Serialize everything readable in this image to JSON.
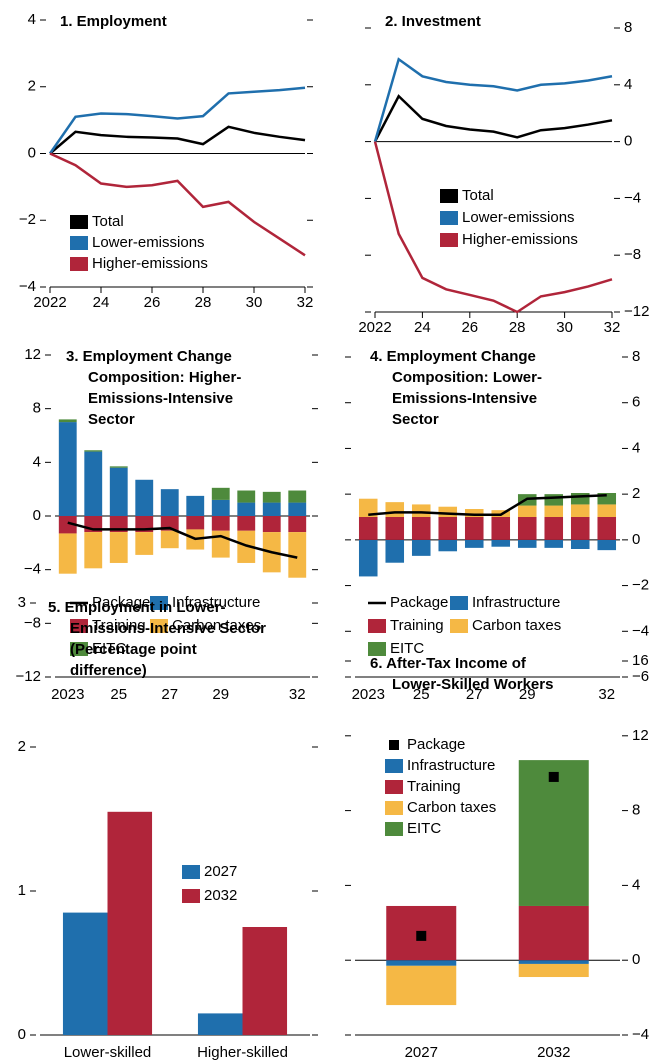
{
  "chart_data": [
    {
      "type": "line",
      "title": [
        "1. Employment"
      ],
      "x": [
        2022,
        2023,
        2024,
        2025,
        2026,
        2027,
        2028,
        2029,
        2030,
        2031,
        2032
      ],
      "xlim": [
        2022,
        2032
      ],
      "xticks": [
        2022,
        {
          "value": 2024,
          "label": "24"
        },
        {
          "value": 2026,
          "label": "26"
        },
        {
          "value": 2028,
          "label": "28"
        },
        {
          "value": 2030,
          "label": "30"
        },
        {
          "value": 2032,
          "label": "32"
        }
      ],
      "ylim": [
        -4,
        4
      ],
      "yticks": [
        {
          "value": -4,
          "label": "−4"
        },
        {
          "value": -2,
          "label": "−2"
        },
        0,
        2,
        4
      ],
      "series": [
        {
          "name": "Total",
          "color": "#000000",
          "values": [
            0,
            0.65,
            0.55,
            0.5,
            0.48,
            0.45,
            0.28,
            0.8,
            0.62,
            0.5,
            0.4
          ]
        },
        {
          "name": "Lower-emissions",
          "color": "#1f6fad",
          "values": [
            0,
            1.1,
            1.2,
            1.18,
            1.12,
            1.05,
            1.12,
            1.8,
            1.85,
            1.9,
            1.97
          ]
        },
        {
          "name": "Higher-emissions",
          "color": "#b0253a",
          "values": [
            0,
            -0.35,
            -0.9,
            -1.0,
            -0.95,
            -0.82,
            -1.6,
            -1.45,
            -2.05,
            -2.55,
            -3.05
          ]
        }
      ]
    },
    {
      "type": "line",
      "title": [
        "2. Investment"
      ],
      "x": [
        2022,
        2023,
        2024,
        2025,
        2026,
        2027,
        2028,
        2029,
        2030,
        2031,
        2032
      ],
      "xlim": [
        2022,
        2032
      ],
      "xticks": [
        2022,
        {
          "value": 2024,
          "label": "24"
        },
        {
          "value": 2026,
          "label": "26"
        },
        {
          "value": 2028,
          "label": "28"
        },
        {
          "value": 2030,
          "label": "30"
        },
        {
          "value": 2032,
          "label": "32"
        }
      ],
      "ylim": [
        -12,
        8
      ],
      "yticks": [
        {
          "value": -12,
          "label": "−12"
        },
        {
          "value": -8,
          "label": "−8"
        },
        {
          "value": -4,
          "label": "−4"
        },
        0,
        4,
        8
      ],
      "series": [
        {
          "name": "Total",
          "color": "#000000",
          "values": [
            0,
            3.2,
            1.6,
            1.1,
            0.85,
            0.7,
            0.3,
            0.8,
            0.95,
            1.2,
            1.5
          ]
        },
        {
          "name": "Lower-emissions",
          "color": "#1f6fad",
          "values": [
            0,
            5.8,
            4.6,
            4.2,
            4.0,
            3.9,
            3.6,
            4.0,
            4.1,
            4.3,
            4.6
          ]
        },
        {
          "name": "Higher-emissions",
          "color": "#b0253a",
          "values": [
            0,
            -6.5,
            -9.6,
            -10.4,
            -10.8,
            -11.2,
            -12.0,
            -10.9,
            -10.6,
            -10.2,
            -9.7
          ]
        }
      ]
    },
    {
      "type": "bar",
      "stacked": true,
      "title": [
        "3. Employment Change",
        "Composition: Higher-",
        "Emissions-Intensive",
        "Sector"
      ],
      "categories": [
        "2023",
        null,
        "25",
        null,
        "27",
        null,
        "29",
        null,
        null,
        "32"
      ],
      "ylim": [
        -12,
        12
      ],
      "yticks": [
        {
          "value": -12,
          "label": "−12"
        },
        {
          "value": -8,
          "label": "−8"
        },
        {
          "value": -4,
          "label": "−4"
        },
        0,
        4,
        8,
        12
      ],
      "series": [
        {
          "name": "Package",
          "type": "line",
          "color": "#000000",
          "values": [
            -0.5,
            -1.0,
            -1.0,
            -1.0,
            -0.9,
            -1.7,
            -1.5,
            -2.2,
            -2.7,
            -3.1
          ]
        },
        {
          "name": "Infrastructure",
          "color": "#1f6fad",
          "values": [
            7.0,
            4.8,
            3.6,
            2.7,
            2.0,
            1.5,
            1.2,
            1.0,
            1.0,
            1.0
          ]
        },
        {
          "name": "Training",
          "color": "#b0253a",
          "values": [
            -1.3,
            -1.2,
            -1.2,
            -1.2,
            -1.1,
            -1.0,
            -1.1,
            -1.1,
            -1.2,
            -1.2
          ]
        },
        {
          "name": "Carbon taxes",
          "color": "#f5b845",
          "values": [
            -3.0,
            -2.7,
            -2.3,
            -1.7,
            -1.3,
            -1.5,
            -2.0,
            -2.4,
            -3.0,
            -3.4
          ]
        },
        {
          "name": "EITC",
          "color": "#4e8a3c",
          "values": [
            0.2,
            0.1,
            0.1,
            0,
            0,
            0,
            0.9,
            0.9,
            0.8,
            0.9
          ]
        }
      ]
    },
    {
      "type": "bar",
      "stacked": true,
      "title": [
        "4. Employment Change",
        "Composition: Lower-",
        "Emissions-Intensive",
        "Sector"
      ],
      "categories": [
        "2023",
        null,
        "25",
        null,
        "27",
        null,
        "29",
        null,
        null,
        "32"
      ],
      "ylim": [
        -6,
        8
      ],
      "yticks": [
        {
          "value": -6,
          "label": "−6"
        },
        {
          "value": -4,
          "label": "−4"
        },
        {
          "value": -2,
          "label": "−2"
        },
        0,
        2,
        4,
        6,
        8
      ],
      "series": [
        {
          "name": "Package",
          "type": "line",
          "color": "#000000",
          "values": [
            1.1,
            1.2,
            1.2,
            1.15,
            1.1,
            1.1,
            1.8,
            1.85,
            1.9,
            1.95
          ]
        },
        {
          "name": "Infrastructure",
          "color": "#1f6fad",
          "values": [
            -1.6,
            -1.0,
            -0.7,
            -0.5,
            -0.35,
            -0.3,
            -0.35,
            -0.35,
            -0.4,
            -0.45
          ]
        },
        {
          "name": "Training",
          "color": "#b0253a",
          "values": [
            1.0,
            1.0,
            1.0,
            1.0,
            1.0,
            1.0,
            1.0,
            1.0,
            1.0,
            1.0
          ]
        },
        {
          "name": "Carbon taxes",
          "color": "#f5b845",
          "values": [
            0.8,
            0.65,
            0.55,
            0.45,
            0.35,
            0.3,
            0.5,
            0.5,
            0.55,
            0.55
          ]
        },
        {
          "name": "EITC",
          "color": "#4e8a3c",
          "values": [
            0,
            0,
            0,
            0,
            0,
            0,
            0.5,
            0.5,
            0.5,
            0.5
          ]
        }
      ]
    },
    {
      "type": "bar",
      "stacked": false,
      "title": [
        "5. Employment in Lower-",
        "Emissions-Intensive Sector",
        "(Percentage point",
        "difference)"
      ],
      "categories": [
        "Lower-skilled",
        "Higher-skilled"
      ],
      "ylim": [
        0,
        3
      ],
      "yticks": [
        0,
        1,
        2,
        3
      ],
      "series": [
        {
          "name": "2027",
          "color": "#1f6fad",
          "values": [
            0.85,
            0.15
          ]
        },
        {
          "name": "2032",
          "color": "#b0253a",
          "values": [
            1.55,
            0.75
          ]
        }
      ]
    },
    {
      "type": "bar",
      "stacked": true,
      "title": [
        "6. After-Tax Income of",
        "Lower-Skilled Workers"
      ],
      "categories": [
        "2027",
        "2032"
      ],
      "ylim": [
        -4,
        16
      ],
      "yticks": [
        {
          "value": -4,
          "label": "−4"
        },
        0,
        4,
        8,
        12,
        16
      ],
      "series": [
        {
          "name": "Package",
          "type": "marker",
          "color": "#000000",
          "values": [
            1.3,
            9.8
          ]
        },
        {
          "name": "Infrastructure",
          "color": "#1f6fad",
          "values": [
            -0.3,
            -0.2
          ]
        },
        {
          "name": "Training",
          "color": "#b0253a",
          "values": [
            2.9,
            2.9
          ]
        },
        {
          "name": "Carbon taxes",
          "color": "#f5b845",
          "values": [
            -2.1,
            -0.7
          ]
        },
        {
          "name": "EITC",
          "color": "#4e8a3c",
          "values": [
            0,
            7.8
          ]
        }
      ]
    }
  ]
}
